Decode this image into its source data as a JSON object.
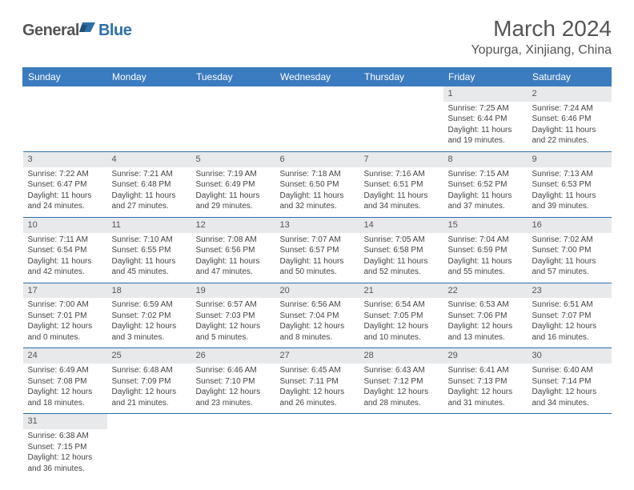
{
  "brand": {
    "text1": "General",
    "text2": "Blue",
    "icon_color": "#2f6fa8"
  },
  "title": "March 2024",
  "location": "Yopurga, Xinjiang, China",
  "colors": {
    "header_bg": "#3b7bbf",
    "daynum_bg": "#e7e9ea",
    "rule": "#2f6fa8",
    "text": "#444444",
    "title_text": "#555555"
  },
  "days_of_week": [
    "Sunday",
    "Monday",
    "Tuesday",
    "Wednesday",
    "Thursday",
    "Friday",
    "Saturday"
  ],
  "weeks": [
    [
      null,
      null,
      null,
      null,
      null,
      {
        "n": "1",
        "sunrise": "Sunrise: 7:25 AM",
        "sunset": "Sunset: 6:44 PM",
        "day1": "Daylight: 11 hours",
        "day2": "and 19 minutes."
      },
      {
        "n": "2",
        "sunrise": "Sunrise: 7:24 AM",
        "sunset": "Sunset: 6:46 PM",
        "day1": "Daylight: 11 hours",
        "day2": "and 22 minutes."
      }
    ],
    [
      {
        "n": "3",
        "sunrise": "Sunrise: 7:22 AM",
        "sunset": "Sunset: 6:47 PM",
        "day1": "Daylight: 11 hours",
        "day2": "and 24 minutes."
      },
      {
        "n": "4",
        "sunrise": "Sunrise: 7:21 AM",
        "sunset": "Sunset: 6:48 PM",
        "day1": "Daylight: 11 hours",
        "day2": "and 27 minutes."
      },
      {
        "n": "5",
        "sunrise": "Sunrise: 7:19 AM",
        "sunset": "Sunset: 6:49 PM",
        "day1": "Daylight: 11 hours",
        "day2": "and 29 minutes."
      },
      {
        "n": "6",
        "sunrise": "Sunrise: 7:18 AM",
        "sunset": "Sunset: 6:50 PM",
        "day1": "Daylight: 11 hours",
        "day2": "and 32 minutes."
      },
      {
        "n": "7",
        "sunrise": "Sunrise: 7:16 AM",
        "sunset": "Sunset: 6:51 PM",
        "day1": "Daylight: 11 hours",
        "day2": "and 34 minutes."
      },
      {
        "n": "8",
        "sunrise": "Sunrise: 7:15 AM",
        "sunset": "Sunset: 6:52 PM",
        "day1": "Daylight: 11 hours",
        "day2": "and 37 minutes."
      },
      {
        "n": "9",
        "sunrise": "Sunrise: 7:13 AM",
        "sunset": "Sunset: 6:53 PM",
        "day1": "Daylight: 11 hours",
        "day2": "and 39 minutes."
      }
    ],
    [
      {
        "n": "10",
        "sunrise": "Sunrise: 7:11 AM",
        "sunset": "Sunset: 6:54 PM",
        "day1": "Daylight: 11 hours",
        "day2": "and 42 minutes."
      },
      {
        "n": "11",
        "sunrise": "Sunrise: 7:10 AM",
        "sunset": "Sunset: 6:55 PM",
        "day1": "Daylight: 11 hours",
        "day2": "and 45 minutes."
      },
      {
        "n": "12",
        "sunrise": "Sunrise: 7:08 AM",
        "sunset": "Sunset: 6:56 PM",
        "day1": "Daylight: 11 hours",
        "day2": "and 47 minutes."
      },
      {
        "n": "13",
        "sunrise": "Sunrise: 7:07 AM",
        "sunset": "Sunset: 6:57 PM",
        "day1": "Daylight: 11 hours",
        "day2": "and 50 minutes."
      },
      {
        "n": "14",
        "sunrise": "Sunrise: 7:05 AM",
        "sunset": "Sunset: 6:58 PM",
        "day1": "Daylight: 11 hours",
        "day2": "and 52 minutes."
      },
      {
        "n": "15",
        "sunrise": "Sunrise: 7:04 AM",
        "sunset": "Sunset: 6:59 PM",
        "day1": "Daylight: 11 hours",
        "day2": "and 55 minutes."
      },
      {
        "n": "16",
        "sunrise": "Sunrise: 7:02 AM",
        "sunset": "Sunset: 7:00 PM",
        "day1": "Daylight: 11 hours",
        "day2": "and 57 minutes."
      }
    ],
    [
      {
        "n": "17",
        "sunrise": "Sunrise: 7:00 AM",
        "sunset": "Sunset: 7:01 PM",
        "day1": "Daylight: 12 hours",
        "day2": "and 0 minutes."
      },
      {
        "n": "18",
        "sunrise": "Sunrise: 6:59 AM",
        "sunset": "Sunset: 7:02 PM",
        "day1": "Daylight: 12 hours",
        "day2": "and 3 minutes."
      },
      {
        "n": "19",
        "sunrise": "Sunrise: 6:57 AM",
        "sunset": "Sunset: 7:03 PM",
        "day1": "Daylight: 12 hours",
        "day2": "and 5 minutes."
      },
      {
        "n": "20",
        "sunrise": "Sunrise: 6:56 AM",
        "sunset": "Sunset: 7:04 PM",
        "day1": "Daylight: 12 hours",
        "day2": "and 8 minutes."
      },
      {
        "n": "21",
        "sunrise": "Sunrise: 6:54 AM",
        "sunset": "Sunset: 7:05 PM",
        "day1": "Daylight: 12 hours",
        "day2": "and 10 minutes."
      },
      {
        "n": "22",
        "sunrise": "Sunrise: 6:53 AM",
        "sunset": "Sunset: 7:06 PM",
        "day1": "Daylight: 12 hours",
        "day2": "and 13 minutes."
      },
      {
        "n": "23",
        "sunrise": "Sunrise: 6:51 AM",
        "sunset": "Sunset: 7:07 PM",
        "day1": "Daylight: 12 hours",
        "day2": "and 16 minutes."
      }
    ],
    [
      {
        "n": "24",
        "sunrise": "Sunrise: 6:49 AM",
        "sunset": "Sunset: 7:08 PM",
        "day1": "Daylight: 12 hours",
        "day2": "and 18 minutes."
      },
      {
        "n": "25",
        "sunrise": "Sunrise: 6:48 AM",
        "sunset": "Sunset: 7:09 PM",
        "day1": "Daylight: 12 hours",
        "day2": "and 21 minutes."
      },
      {
        "n": "26",
        "sunrise": "Sunrise: 6:46 AM",
        "sunset": "Sunset: 7:10 PM",
        "day1": "Daylight: 12 hours",
        "day2": "and 23 minutes."
      },
      {
        "n": "27",
        "sunrise": "Sunrise: 6:45 AM",
        "sunset": "Sunset: 7:11 PM",
        "day1": "Daylight: 12 hours",
        "day2": "and 26 minutes."
      },
      {
        "n": "28",
        "sunrise": "Sunrise: 6:43 AM",
        "sunset": "Sunset: 7:12 PM",
        "day1": "Daylight: 12 hours",
        "day2": "and 28 minutes."
      },
      {
        "n": "29",
        "sunrise": "Sunrise: 6:41 AM",
        "sunset": "Sunset: 7:13 PM",
        "day1": "Daylight: 12 hours",
        "day2": "and 31 minutes."
      },
      {
        "n": "30",
        "sunrise": "Sunrise: 6:40 AM",
        "sunset": "Sunset: 7:14 PM",
        "day1": "Daylight: 12 hours",
        "day2": "and 34 minutes."
      }
    ],
    [
      {
        "n": "31",
        "sunrise": "Sunrise: 6:38 AM",
        "sunset": "Sunset: 7:15 PM",
        "day1": "Daylight: 12 hours",
        "day2": "and 36 minutes."
      },
      null,
      null,
      null,
      null,
      null,
      null
    ]
  ]
}
